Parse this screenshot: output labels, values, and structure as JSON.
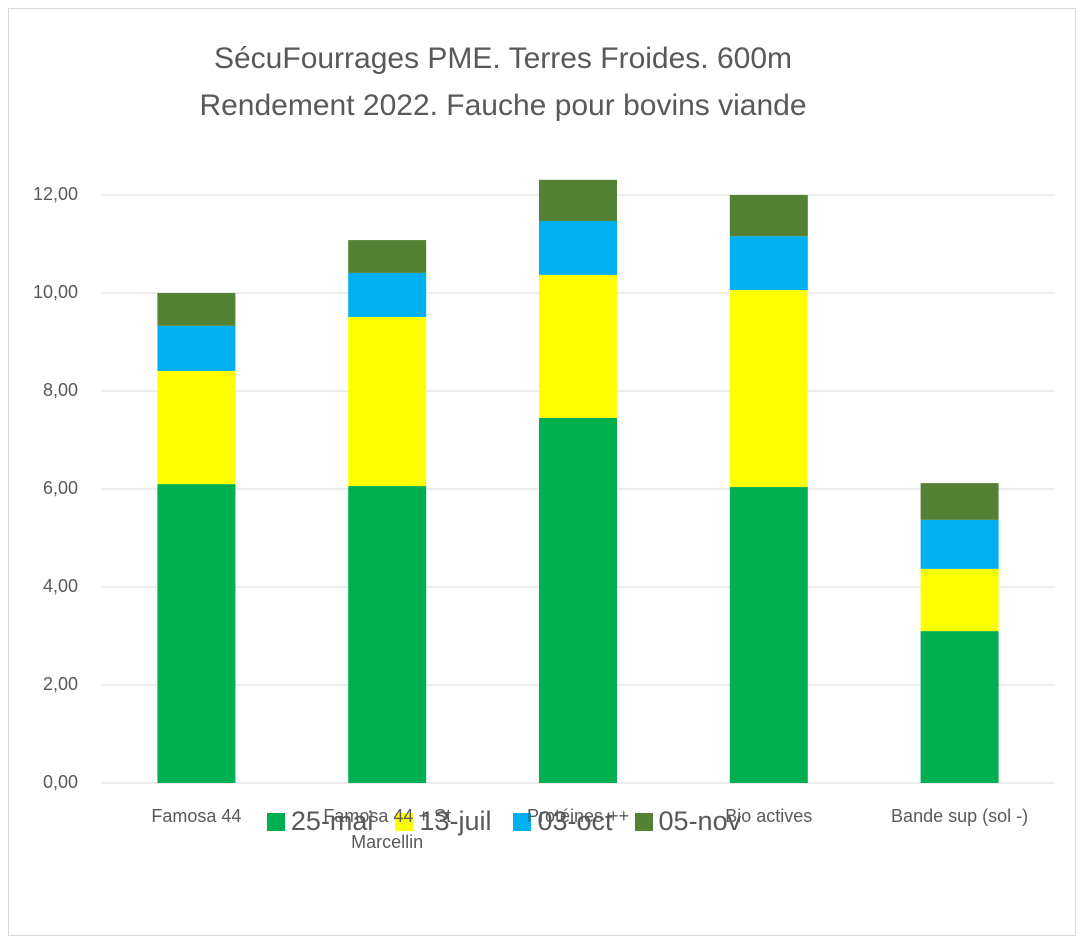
{
  "chart_data": {
    "type": "bar",
    "stacked": true,
    "title": [
      "SécuFourrages PME. Terres Froides. 600m",
      "Rendement 2022. Fauche pour bovins viande"
    ],
    "categories": [
      "Famosa 44",
      "Famosa 44 + St Marcellin",
      "Protéines ++",
      "Bio actives",
      "Bande sup (sol -)"
    ],
    "series": [
      {
        "name": "25-mai",
        "color": "#00b050",
        "values": [
          6.1,
          6.06,
          7.45,
          6.04,
          3.1
        ]
      },
      {
        "name": "13-juil",
        "color": "#ffff00",
        "values": [
          2.31,
          3.45,
          2.92,
          4.02,
          1.27
        ]
      },
      {
        "name": "03-oct",
        "color": "#00b0f0",
        "values": [
          0.92,
          0.9,
          1.1,
          1.1,
          1.0
        ]
      },
      {
        "name": "05-nov",
        "color": "#548235",
        "values": [
          0.67,
          0.67,
          0.84,
          0.84,
          0.75
        ]
      }
    ],
    "ylim": [
      0,
      12.5
    ],
    "yticks": [
      {
        "value": 0,
        "label": "0,00"
      },
      {
        "value": 2,
        "label": "2,00"
      },
      {
        "value": 4,
        "label": "4,00"
      },
      {
        "value": 6,
        "label": "6,00"
      },
      {
        "value": 8,
        "label": "8,00"
      },
      {
        "value": 10,
        "label": "10,00"
      },
      {
        "value": 12,
        "label": "12,00"
      }
    ],
    "grid": true,
    "legend": "bottom"
  }
}
